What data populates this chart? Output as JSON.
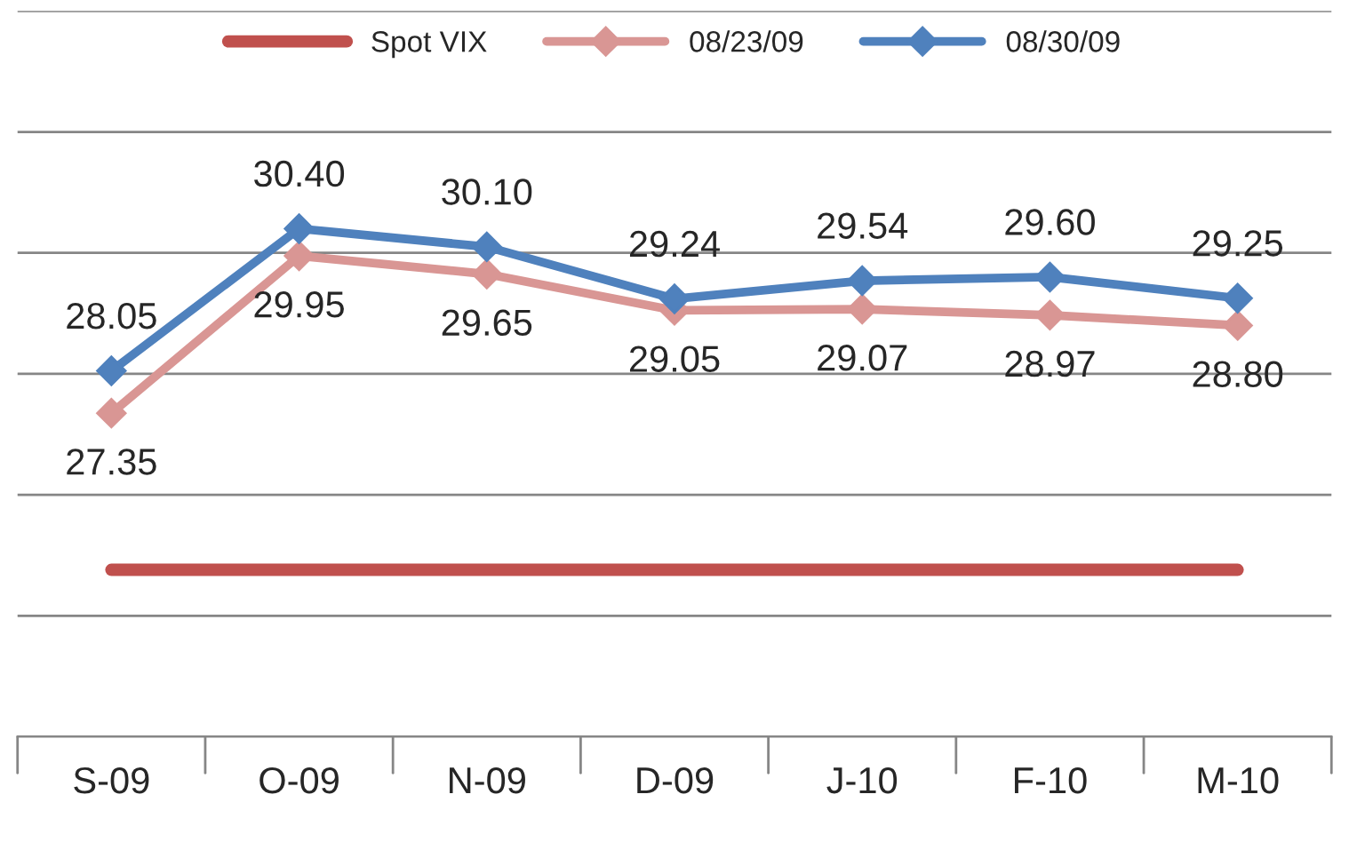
{
  "chart_data": {
    "type": "line",
    "categories": [
      "S-09",
      "O-09",
      "N-09",
      "D-09",
      "J-10",
      "F-10",
      "M-10"
    ],
    "series": [
      {
        "name": "Spot VIX",
        "color": "#c0504d",
        "marker": "none",
        "values": [
          24.76,
          24.76,
          24.76,
          24.76,
          24.76,
          24.76,
          24.76
        ]
      },
      {
        "name": "08/23/09",
        "color": "#d99694",
        "values": [
          27.35,
          29.95,
          29.65,
          29.05,
          29.07,
          28.97,
          28.8
        ],
        "value_labels": [
          "27.35",
          "29.95",
          "29.65",
          "29.05",
          "29.07",
          "28.97",
          "28.80"
        ]
      },
      {
        "name": "08/30/09",
        "color": "#4f81bd",
        "values": [
          28.05,
          30.4,
          30.1,
          29.24,
          29.54,
          29.6,
          29.25
        ],
        "value_labels": [
          "28.05",
          "30.40",
          "30.10",
          "29.24",
          "29.54",
          "29.60",
          "29.25"
        ]
      }
    ],
    "ylim": [
      22,
      34
    ],
    "yticks": [
      {
        "value": 22,
        "label": null
      },
      {
        "value": 24,
        "label": null
      },
      {
        "value": 26,
        "label": null
      },
      {
        "value": 28,
        "label": null
      },
      {
        "value": 30,
        "label": null
      },
      {
        "value": 32,
        "label": null
      },
      {
        "value": 34,
        "label": null
      }
    ],
    "tick_labels": "x",
    "grid": "y",
    "legend": "top",
    "marker": "diamond",
    "line_style": "solid"
  }
}
